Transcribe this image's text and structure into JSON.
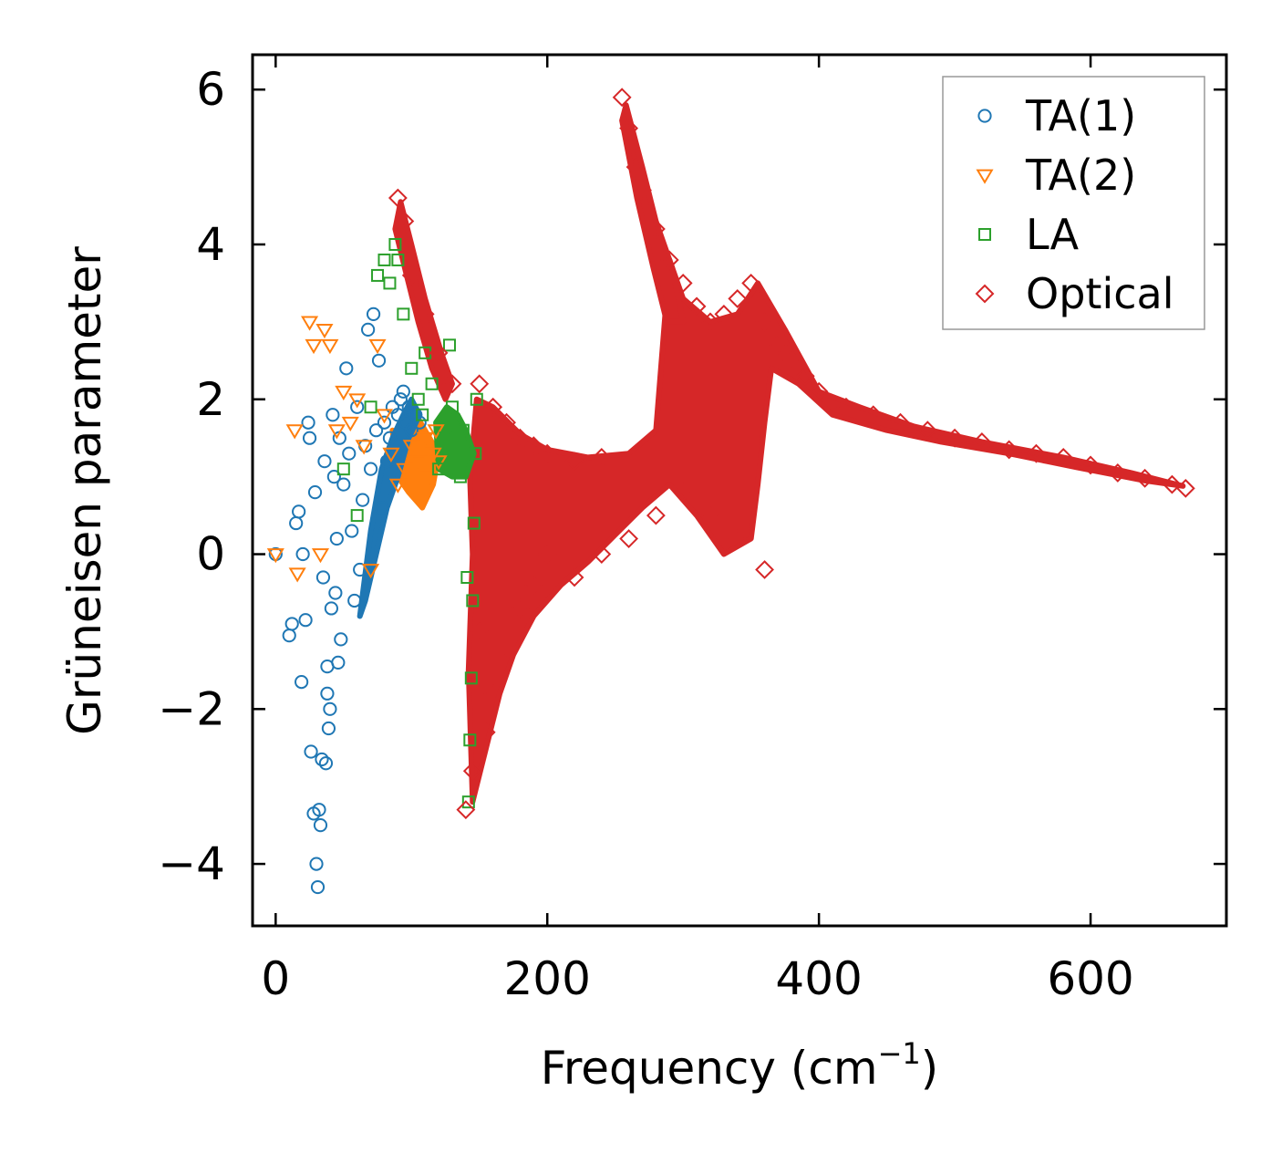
{
  "chart_data": {
    "type": "scatter",
    "title": "",
    "xlabel": "Frequency (cm",
    "xlabel_sup": "−1",
    "xlabel_close": ")",
    "ylabel": "Grüneisen parameter",
    "xlim": [
      -17,
      700
    ],
    "ylim": [
      -4.8,
      6.45
    ],
    "xticks": [
      0,
      200,
      400,
      600
    ],
    "xtick_labels": [
      "0",
      "200",
      "400",
      "600"
    ],
    "yticks": [
      -4,
      -2,
      0,
      2,
      4,
      6
    ],
    "ytick_labels": [
      "−4",
      "−2",
      "0",
      "2",
      "4",
      "6"
    ],
    "grid": false,
    "legend_position": "top-right",
    "series": [
      {
        "name": "TA(1)",
        "marker": "circle",
        "color": "#1f77b4",
        "points": [
          [
            0,
            0
          ],
          [
            10,
            -1.05
          ],
          [
            12,
            -0.9
          ],
          [
            15,
            0.4
          ],
          [
            17,
            0.55
          ],
          [
            19,
            -1.65
          ],
          [
            20,
            0
          ],
          [
            22,
            -0.85
          ],
          [
            24,
            1.7
          ],
          [
            25,
            1.5
          ],
          [
            26,
            -2.55
          ],
          [
            28,
            -3.35
          ],
          [
            29,
            0.8
          ],
          [
            30,
            -4
          ],
          [
            31,
            -4.3
          ],
          [
            32,
            -3.3
          ],
          [
            33,
            -3.5
          ],
          [
            34,
            -2.65
          ],
          [
            35,
            -0.3
          ],
          [
            36,
            1.2
          ],
          [
            37,
            -2.7
          ],
          [
            38,
            -1.45
          ],
          [
            38,
            -1.8
          ],
          [
            39,
            -2.25
          ],
          [
            40,
            -2.0
          ],
          [
            41,
            -0.7
          ],
          [
            42,
            1.8
          ],
          [
            43,
            1.0
          ],
          [
            44,
            -0.5
          ],
          [
            45,
            0.2
          ],
          [
            46,
            -1.4
          ],
          [
            47,
            1.5
          ],
          [
            48,
            -1.1
          ],
          [
            50,
            0.9
          ],
          [
            52,
            2.4
          ],
          [
            54,
            1.3
          ],
          [
            56,
            0.3
          ],
          [
            58,
            -0.6
          ],
          [
            60,
            1.9
          ],
          [
            62,
            -0.2
          ],
          [
            64,
            0.7
          ],
          [
            66,
            1.4
          ],
          [
            68,
            2.9
          ],
          [
            70,
            1.1
          ],
          [
            72,
            3.1
          ],
          [
            74,
            1.6
          ],
          [
            76,
            2.5
          ],
          [
            78,
            0.6
          ],
          [
            80,
            1.7
          ],
          [
            82,
            1.2
          ],
          [
            84,
            1.5
          ],
          [
            86,
            1.9
          ],
          [
            88,
            1.3
          ],
          [
            90,
            1.8
          ],
          [
            92,
            2.0
          ],
          [
            94,
            2.1
          ],
          [
            96,
            1.7
          ],
          [
            98,
            1.9
          ],
          [
            100,
            1.6
          ],
          [
            103,
            1.8
          ],
          [
            106,
            1.7
          ]
        ]
      },
      {
        "name": "TA(2)",
        "marker": "triangle",
        "color": "#ff7f0e",
        "points": [
          [
            0,
            0
          ],
          [
            14,
            1.6
          ],
          [
            16,
            -0.25
          ],
          [
            25,
            3.0
          ],
          [
            28,
            2.7
          ],
          [
            33,
            0
          ],
          [
            36,
            2.9
          ],
          [
            40,
            2.7
          ],
          [
            45,
            1.6
          ],
          [
            50,
            2.1
          ],
          [
            55,
            1.7
          ],
          [
            60,
            2.0
          ],
          [
            65,
            1.4
          ],
          [
            70,
            -0.2
          ],
          [
            75,
            2.7
          ],
          [
            80,
            1.8
          ],
          [
            85,
            1.3
          ],
          [
            90,
            0.9
          ],
          [
            95,
            1.1
          ],
          [
            100,
            1.4
          ],
          [
            105,
            1.2
          ],
          [
            110,
            1.5
          ],
          [
            113,
            1.0
          ],
          [
            116,
            1.3
          ],
          [
            118,
            1.6
          ],
          [
            120,
            1.2
          ]
        ]
      },
      {
        "name": "LA",
        "marker": "square",
        "color": "#2ca02c",
        "points": [
          [
            50,
            1.1
          ],
          [
            60,
            0.5
          ],
          [
            70,
            1.9
          ],
          [
            75,
            3.6
          ],
          [
            80,
            3.8
          ],
          [
            84,
            3.5
          ],
          [
            88,
            4.0
          ],
          [
            90,
            3.8
          ],
          [
            94,
            3.1
          ],
          [
            100,
            2.4
          ],
          [
            105,
            2.0
          ],
          [
            108,
            1.8
          ],
          [
            110,
            2.6
          ],
          [
            115,
            2.2
          ],
          [
            120,
            1.1
          ],
          [
            125,
            1.5
          ],
          [
            128,
            2.7
          ],
          [
            130,
            1.9
          ],
          [
            133,
            1.3
          ],
          [
            136,
            1.0
          ],
          [
            138,
            1.6
          ],
          [
            141,
            -0.3
          ],
          [
            142,
            -3.2
          ],
          [
            143,
            -2.4
          ],
          [
            144,
            -1.6
          ],
          [
            145,
            -0.6
          ],
          [
            146,
            0.4
          ],
          [
            147,
            1.3
          ],
          [
            148,
            2.0
          ]
        ]
      },
      {
        "name": "Optical",
        "marker": "diamond",
        "color": "#d62728",
        "points": [
          [
            90,
            4.6
          ],
          [
            95,
            4.3
          ],
          [
            100,
            3.6
          ],
          [
            110,
            3.1
          ],
          [
            120,
            2.6
          ],
          [
            130,
            2.2
          ],
          [
            140,
            -3.3
          ],
          [
            145,
            -2.8
          ],
          [
            150,
            2.2
          ],
          [
            155,
            -2.3
          ],
          [
            160,
            1.9
          ],
          [
            170,
            1.7
          ],
          [
            180,
            1.5
          ],
          [
            190,
            1.4
          ],
          [
            200,
            1.3
          ],
          [
            220,
            1.2
          ],
          [
            240,
            1.25
          ],
          [
            255,
            5.9
          ],
          [
            260,
            5.5
          ],
          [
            265,
            5.0
          ],
          [
            270,
            4.7
          ],
          [
            280,
            4.2
          ],
          [
            290,
            3.8
          ],
          [
            300,
            3.5
          ],
          [
            310,
            3.2
          ],
          [
            320,
            3.0
          ],
          [
            330,
            3.1
          ],
          [
            340,
            3.3
          ],
          [
            350,
            3.5
          ],
          [
            360,
            3.0
          ],
          [
            370,
            2.7
          ],
          [
            380,
            2.5
          ],
          [
            390,
            2.3
          ],
          [
            400,
            2.1
          ],
          [
            420,
            1.9
          ],
          [
            440,
            1.8
          ],
          [
            460,
            1.7
          ],
          [
            480,
            1.6
          ],
          [
            500,
            1.5
          ],
          [
            520,
            1.45
          ],
          [
            540,
            1.35
          ],
          [
            560,
            1.3
          ],
          [
            580,
            1.25
          ],
          [
            600,
            1.15
          ],
          [
            620,
            1.05
          ],
          [
            640,
            0.98
          ],
          [
            660,
            0.9
          ],
          [
            670,
            0.85
          ],
          [
            200,
            0.0
          ],
          [
            220,
            -0.3
          ],
          [
            240,
            0.0
          ],
          [
            260,
            0.2
          ],
          [
            280,
            0.5
          ],
          [
            300,
            0.8
          ],
          [
            320,
            0.5
          ],
          [
            340,
            0.2
          ],
          [
            360,
            -0.2
          ],
          [
            180,
            -0.7
          ],
          [
            170,
            -1.2
          ],
          [
            160,
            -1.8
          ],
          [
            150,
            -1.0
          ],
          [
            190,
            -0.4
          ]
        ]
      }
    ]
  }
}
